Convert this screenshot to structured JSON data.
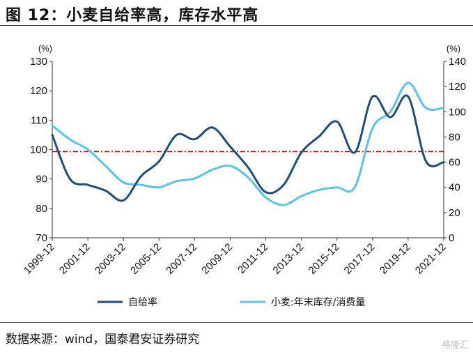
{
  "title": "图 12：小麦自给率高，库存水平高",
  "source": "数据来源：wind，国泰君安证券研究",
  "watermark": "格隆汇",
  "chart_data": {
    "type": "line",
    "left_axis": {
      "unit": "(%)",
      "min": 70,
      "max": 130,
      "ticks": [
        70,
        80,
        90,
        100,
        110,
        120,
        130
      ]
    },
    "right_axis": {
      "unit": "(%)",
      "min": 0,
      "max": 140,
      "ticks": [
        0,
        20,
        40,
        60,
        80,
        100,
        120,
        140
      ]
    },
    "x": [
      1999,
      2000,
      2001,
      2002,
      2003,
      2004,
      2005,
      2006,
      2007,
      2008,
      2009,
      2010,
      2011,
      2012,
      2013,
      2014,
      2015,
      2016,
      2017,
      2018,
      2019,
      2020,
      2021
    ],
    "x_tick_labels": [
      "1999-12",
      "2001-12",
      "2003-12",
      "2005-12",
      "2007-12",
      "2009-12",
      "2011-12",
      "2013-12",
      "2015-12",
      "2017-12",
      "2019-12",
      "2021-12"
    ],
    "series": [
      {
        "name": "自给率",
        "axis": "left",
        "color": "#1f4e79",
        "values": [
          105,
          90,
          88,
          86,
          82.7,
          91,
          96,
          105,
          103.5,
          107.5,
          101,
          94,
          85.5,
          88,
          99,
          104.5,
          109.5,
          99,
          118,
          111,
          118,
          96,
          95.7
        ]
      },
      {
        "name": "小麦:年末库存/消费量",
        "axis": "right",
        "color": "#5bc3ea",
        "values": [
          89,
          78,
          70,
          57,
          44,
          42,
          40,
          45,
          47,
          54,
          57,
          48,
          32,
          26,
          33,
          38,
          40,
          40,
          87,
          100,
          123,
          103,
          103
        ]
      }
    ],
    "reference_line": {
      "axis": "left",
      "value": 99.3,
      "color": "#cc0000",
      "style": "dash-dot"
    },
    "legend_position": "bottom",
    "grid": false
  }
}
